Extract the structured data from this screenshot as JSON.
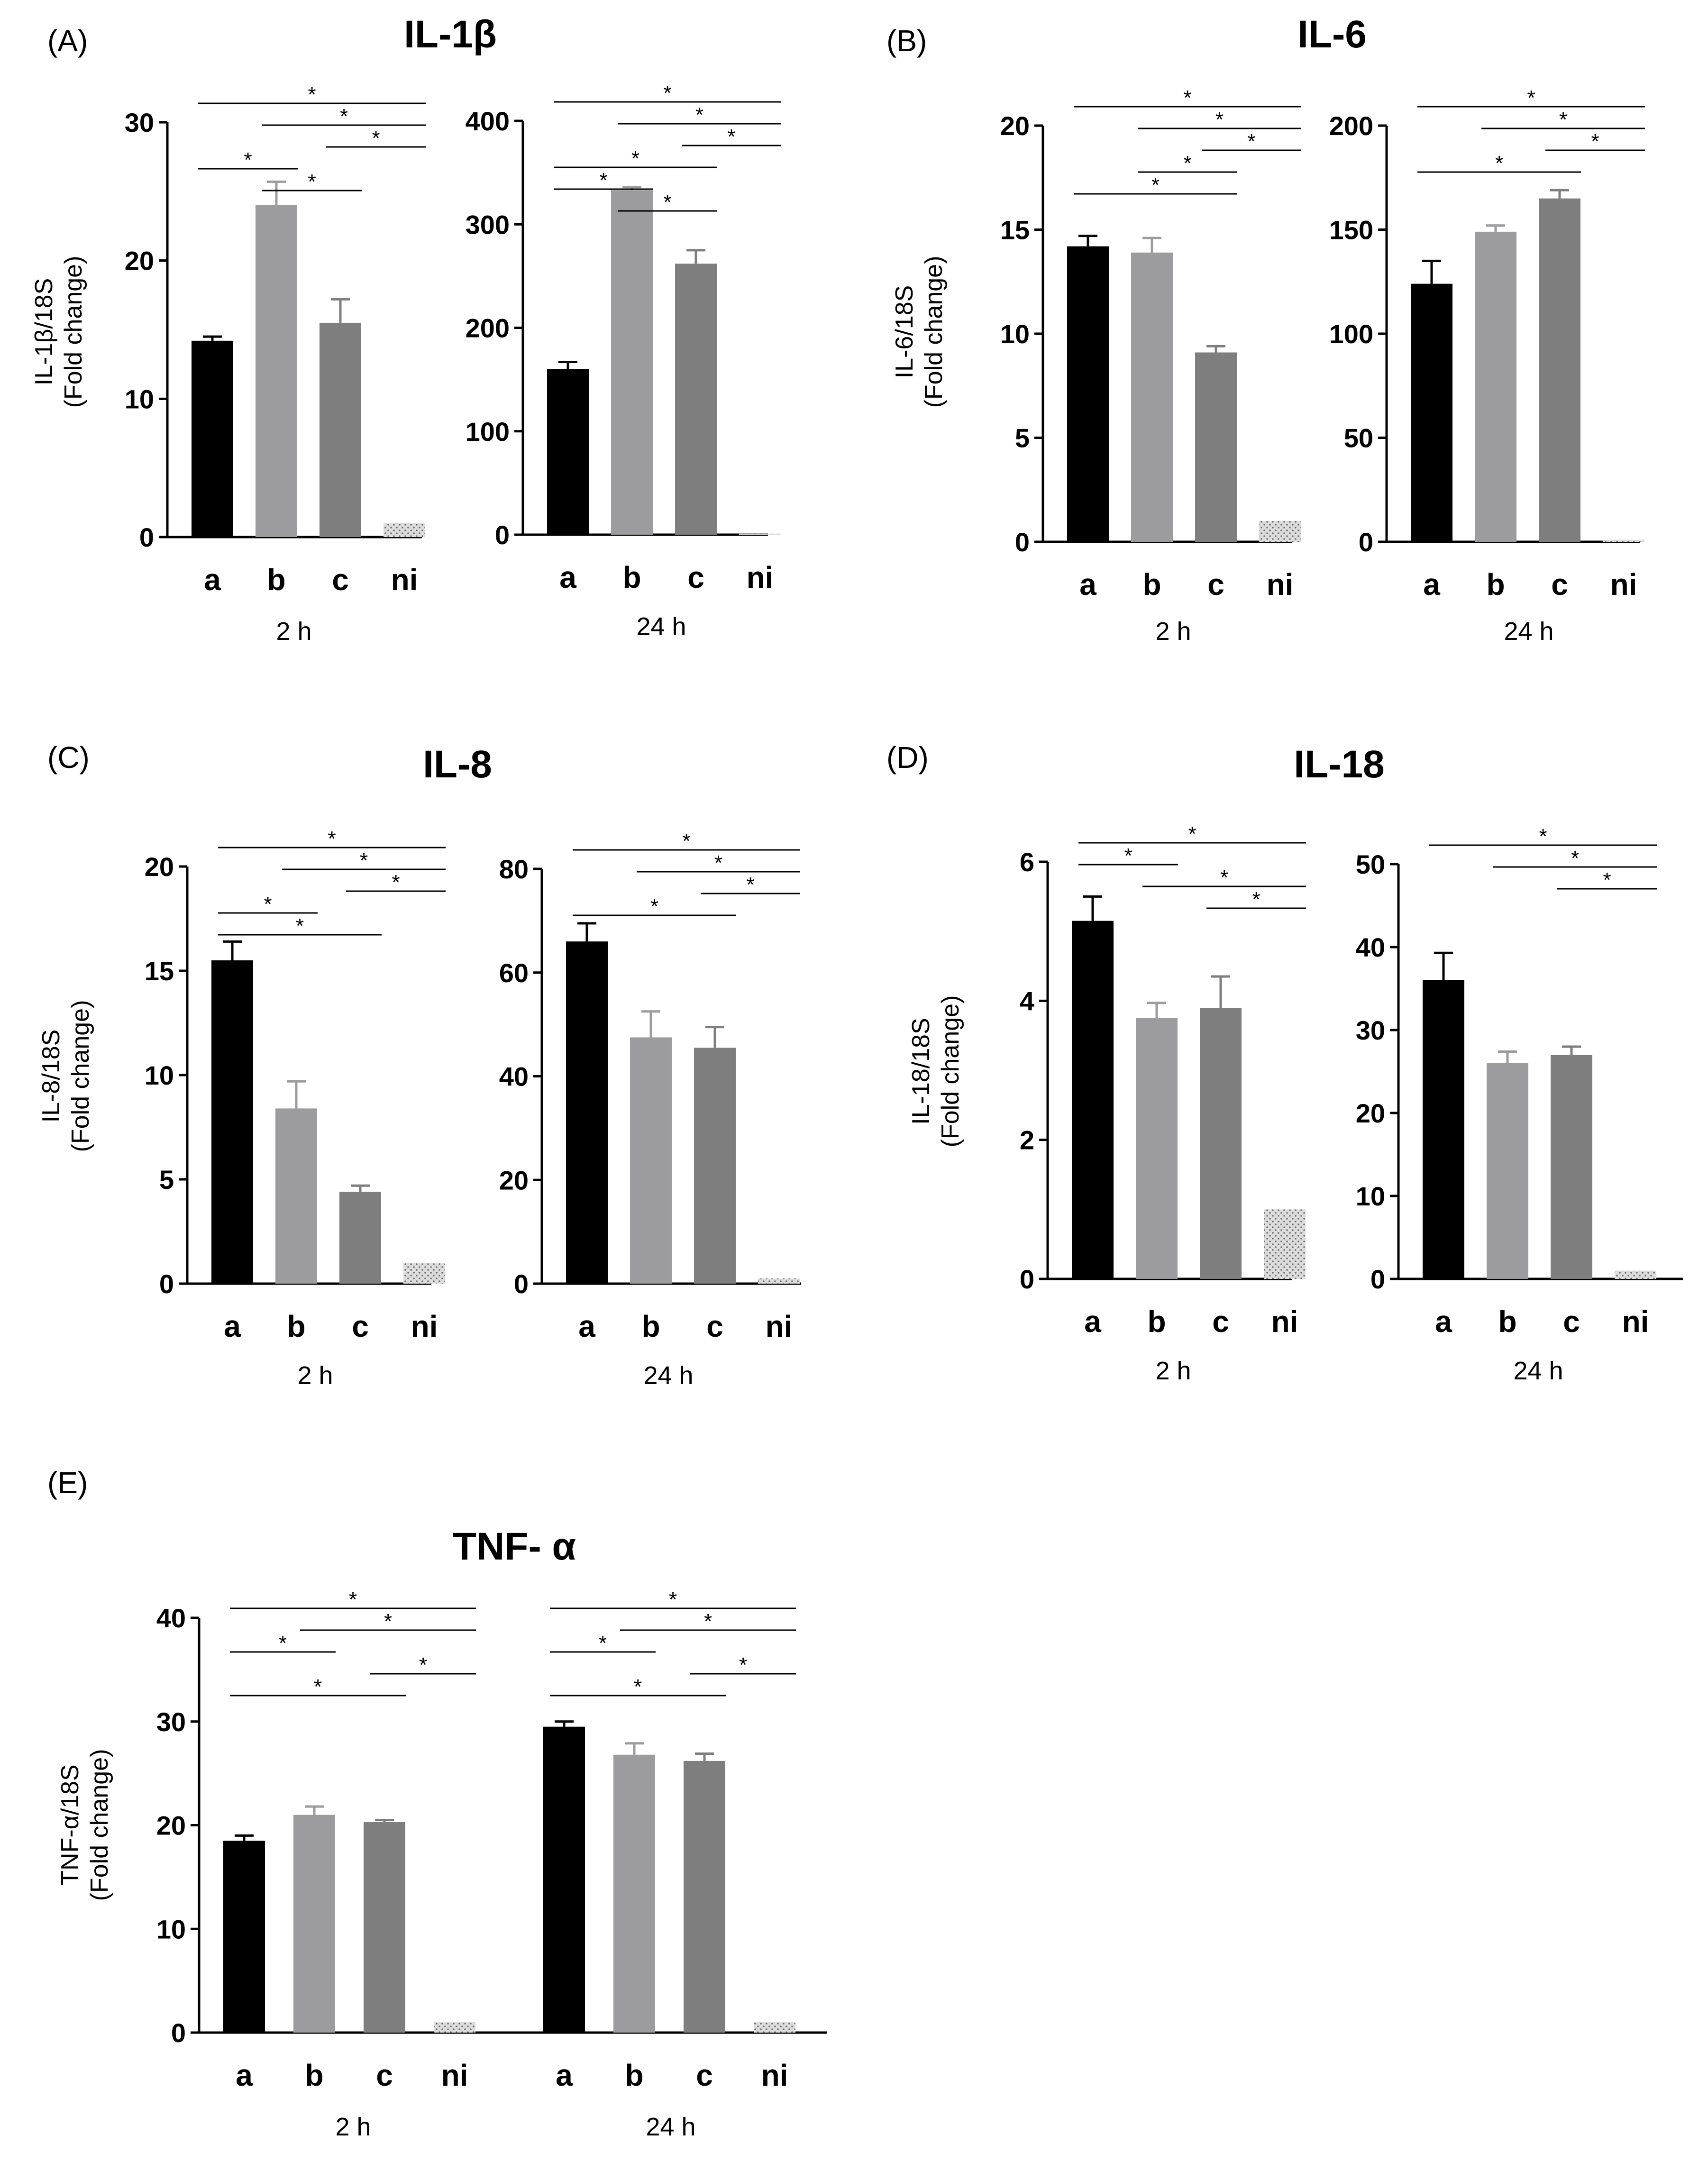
{
  "chart_data": [
    {
      "type": "bar",
      "panel": "(A)",
      "title": "IL-1β",
      "ylabel_line1": "IL-1β/18S",
      "ylabel_line2": "(Fold change)",
      "subcharts": [
        {
          "label": "2 h",
          "categories": [
            "a",
            "b",
            "c",
            "ni"
          ],
          "values": [
            14.2,
            24,
            15.5,
            1
          ],
          "errors": [
            0.3,
            1.7,
            1.7,
            0
          ],
          "ylim": [
            0,
            30
          ],
          "ticks": [
            0,
            10,
            20,
            30
          ],
          "comparisons": [
            {
              "from": 0,
              "to": 3,
              "label": "*"
            },
            {
              "from": 1,
              "to": 3,
              "label": "*"
            },
            {
              "from": 2,
              "to": 3,
              "label": "*"
            },
            {
              "from": 0,
              "to": 1,
              "label": "*"
            },
            {
              "from": 1,
              "to": 2,
              "label": "*"
            }
          ]
        },
        {
          "label": "24 h",
          "categories": [
            "a",
            "b",
            "c",
            "ni"
          ],
          "values": [
            160,
            333,
            262,
            1
          ],
          "errors": [
            7,
            3,
            13,
            0
          ],
          "ylim": [
            0,
            400
          ],
          "ticks": [
            0,
            100,
            200,
            300,
            400
          ],
          "comparisons": [
            {
              "from": 0,
              "to": 3,
              "label": "*"
            },
            {
              "from": 1,
              "to": 3,
              "label": "*"
            },
            {
              "from": 2,
              "to": 3,
              "label": "*"
            },
            {
              "from": 0,
              "to": 2,
              "label": "*"
            },
            {
              "from": 0,
              "to": 1,
              "label": "*"
            },
            {
              "from": 1,
              "to": 2,
              "label": "*"
            }
          ]
        }
      ]
    },
    {
      "type": "bar",
      "panel": "(B)",
      "title": "IL-6",
      "ylabel_line1": "IL-6/18S",
      "ylabel_line2": "(Fold change)",
      "subcharts": [
        {
          "label": "2 h",
          "categories": [
            "a",
            "b",
            "c",
            "ni"
          ],
          "values": [
            14.2,
            13.9,
            9.1,
            1
          ],
          "errors": [
            0.5,
            0.7,
            0.3,
            0
          ],
          "ylim": [
            0,
            20
          ],
          "ticks": [
            0,
            5,
            10,
            15,
            20
          ],
          "comparisons": [
            {
              "from": 0,
              "to": 3,
              "label": "*"
            },
            {
              "from": 1,
              "to": 3,
              "label": "*"
            },
            {
              "from": 2,
              "to": 3,
              "label": "*"
            },
            {
              "from": 1,
              "to": 2,
              "label": "*"
            },
            {
              "from": 0,
              "to": 2,
              "label": "*"
            }
          ]
        },
        {
          "label": "24 h",
          "categories": [
            "a",
            "b",
            "c",
            "ni"
          ],
          "values": [
            124,
            149,
            165,
            1
          ],
          "errors": [
            11,
            3,
            4,
            0
          ],
          "ylim": [
            0,
            200
          ],
          "ticks": [
            0,
            50,
            100,
            150,
            200
          ],
          "comparisons": [
            {
              "from": 0,
              "to": 3,
              "label": "*"
            },
            {
              "from": 1,
              "to": 3,
              "label": "*"
            },
            {
              "from": 2,
              "to": 3,
              "label": "*"
            },
            {
              "from": 0,
              "to": 2,
              "label": "*"
            }
          ]
        }
      ]
    },
    {
      "type": "bar",
      "panel": "(C)",
      "title": "IL-8",
      "ylabel_line1": "IL-8/18S",
      "ylabel_line2": "(Fold change)",
      "subcharts": [
        {
          "label": "2 h",
          "categories": [
            "a",
            "b",
            "c",
            "ni"
          ],
          "values": [
            15.5,
            8.4,
            4.4,
            1
          ],
          "errors": [
            0.9,
            1.3,
            0.3,
            0
          ],
          "ylim": [
            0,
            20
          ],
          "ticks": [
            0,
            5,
            10,
            15,
            20
          ],
          "comparisons": [
            {
              "from": 0,
              "to": 3,
              "label": "*"
            },
            {
              "from": 1,
              "to": 3,
              "label": "*"
            },
            {
              "from": 2,
              "to": 3,
              "label": "*"
            },
            {
              "from": 0,
              "to": 1,
              "label": "*"
            },
            {
              "from": 0,
              "to": 2,
              "label": "*"
            }
          ]
        },
        {
          "label": "24 h",
          "categories": [
            "a",
            "b",
            "c",
            "ni"
          ],
          "values": [
            66,
            47.5,
            45.5,
            1
          ],
          "errors": [
            3.5,
            5,
            4,
            0
          ],
          "ylim": [
            0,
            80
          ],
          "ticks": [
            0,
            20,
            40,
            60,
            80
          ],
          "comparisons": [
            {
              "from": 0,
              "to": 3,
              "label": "*"
            },
            {
              "from": 1,
              "to": 3,
              "label": "*"
            },
            {
              "from": 2,
              "to": 3,
              "label": "*"
            },
            {
              "from": 0,
              "to": 2,
              "label": "*"
            }
          ]
        }
      ]
    },
    {
      "type": "bar",
      "panel": "(D)",
      "title": "IL-18",
      "ylabel_line1": "IL-18/18S",
      "ylabel_line2": "(Fold change)",
      "subcharts": [
        {
          "label": "2 h",
          "categories": [
            "a",
            "b",
            "c",
            "ni"
          ],
          "values": [
            5.15,
            3.75,
            3.9,
            1
          ],
          "errors": [
            0.35,
            0.22,
            0.45,
            0
          ],
          "ylim": [
            0,
            6
          ],
          "ticks": [
            0,
            2,
            4,
            6
          ],
          "comparisons": [
            {
              "from": 0,
              "to": 3,
              "label": "*"
            },
            {
              "from": 0,
              "to": 1,
              "label": "*"
            },
            {
              "from": 1,
              "to": 3,
              "label": "*"
            },
            {
              "from": 2,
              "to": 3,
              "label": "*"
            }
          ]
        },
        {
          "label": "24 h",
          "categories": [
            "a",
            "b",
            "c",
            "ni"
          ],
          "values": [
            36,
            26,
            27,
            1
          ],
          "errors": [
            3.3,
            1.4,
            1,
            0
          ],
          "ylim": [
            0,
            50
          ],
          "ticks": [
            0,
            10,
            20,
            30,
            40,
            50
          ],
          "comparisons": [
            {
              "from": 0,
              "to": 3,
              "label": "*"
            },
            {
              "from": 1,
              "to": 3,
              "label": "*"
            },
            {
              "from": 2,
              "to": 3,
              "label": "*"
            }
          ]
        }
      ]
    },
    {
      "type": "bar",
      "panel": "(E)",
      "title": "TNF- α",
      "ylabel_line1": "TNF-α/18S",
      "ylabel_line2": "(Fold change)",
      "ylim": [
        0,
        40
      ],
      "ticks": [
        0,
        10,
        20,
        30,
        40
      ],
      "subcharts": [
        {
          "label": "2 h",
          "categories": [
            "a",
            "b",
            "c",
            "ni"
          ],
          "values": [
            18.5,
            21,
            20.3,
            1
          ],
          "errors": [
            0.5,
            0.8,
            0.2,
            0
          ],
          "comparisons": [
            {
              "from": 0,
              "to": 3,
              "label": "*"
            },
            {
              "from": 1,
              "to": 3,
              "label": "*"
            },
            {
              "from": 0,
              "to": 1,
              "label": "*"
            },
            {
              "from": 2,
              "to": 3,
              "label": "*"
            },
            {
              "from": 0,
              "to": 2,
              "label": "*"
            }
          ]
        },
        {
          "label": "24 h",
          "categories": [
            "a",
            "b",
            "c",
            "ni"
          ],
          "values": [
            29.5,
            26.8,
            26.2,
            1
          ],
          "errors": [
            0.5,
            1.1,
            0.7,
            0
          ],
          "comparisons": [
            {
              "from": 0,
              "to": 3,
              "label": "*"
            },
            {
              "from": 1,
              "to": 3,
              "label": "*"
            },
            {
              "from": 0,
              "to": 1,
              "label": "*"
            },
            {
              "from": 2,
              "to": 3,
              "label": "*"
            },
            {
              "from": 0,
              "to": 2,
              "label": "*"
            }
          ]
        }
      ]
    }
  ],
  "colors": {
    "a": "#000000",
    "b": "#9c9c9f",
    "c": "#7e7e7e",
    "ni": "#dcdcdc",
    "ni_dots": "#777777",
    "axis": "#000000"
  }
}
